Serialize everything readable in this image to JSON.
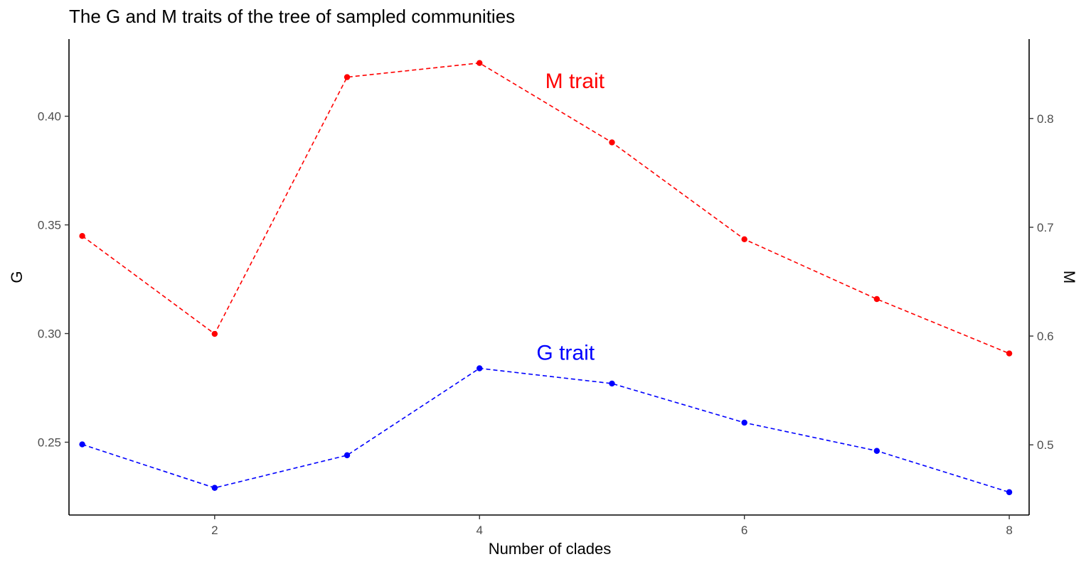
{
  "chart_data": {
    "type": "line",
    "title": "The G and M traits of the tree of sampled communities",
    "xlabel": "Number of clades",
    "ylabel_left": "G",
    "ylabel_right": "M",
    "x": [
      1,
      2,
      3,
      4,
      5,
      6,
      7,
      8
    ],
    "xlim": [
      0.9,
      8.15
    ],
    "xticks": [
      2,
      4,
      6,
      8
    ],
    "ylim_left": [
      0.2165,
      0.4355
    ],
    "yticks_left": [
      "0.25",
      "0.30",
      "0.35",
      "0.40"
    ],
    "ylim_right": [
      0.4355,
      0.873
    ],
    "yticks_right": [
      "0.5",
      "0.6",
      "0.7",
      "0.8"
    ],
    "grid": false,
    "series": [
      {
        "name": "G trait",
        "axis": "left",
        "color": "#0000ff",
        "linestyle": "dashed",
        "values": [
          0.249,
          0.229,
          0.244,
          0.284,
          0.277,
          0.259,
          0.246,
          0.227
        ]
      },
      {
        "name": "M trait",
        "axis": "right",
        "color": "#ff0000",
        "linestyle": "dashed",
        "values": [
          0.692,
          0.602,
          0.838,
          0.851,
          0.778,
          0.689,
          0.634,
          0.584
        ]
      }
    ],
    "annotations": [
      {
        "text": "M trait",
        "x": 4.72,
        "y_right": 0.828,
        "color": "#ff0000"
      },
      {
        "text": "G trait",
        "x": 4.65,
        "y_left": 0.288,
        "color": "#0000ff"
      }
    ]
  }
}
